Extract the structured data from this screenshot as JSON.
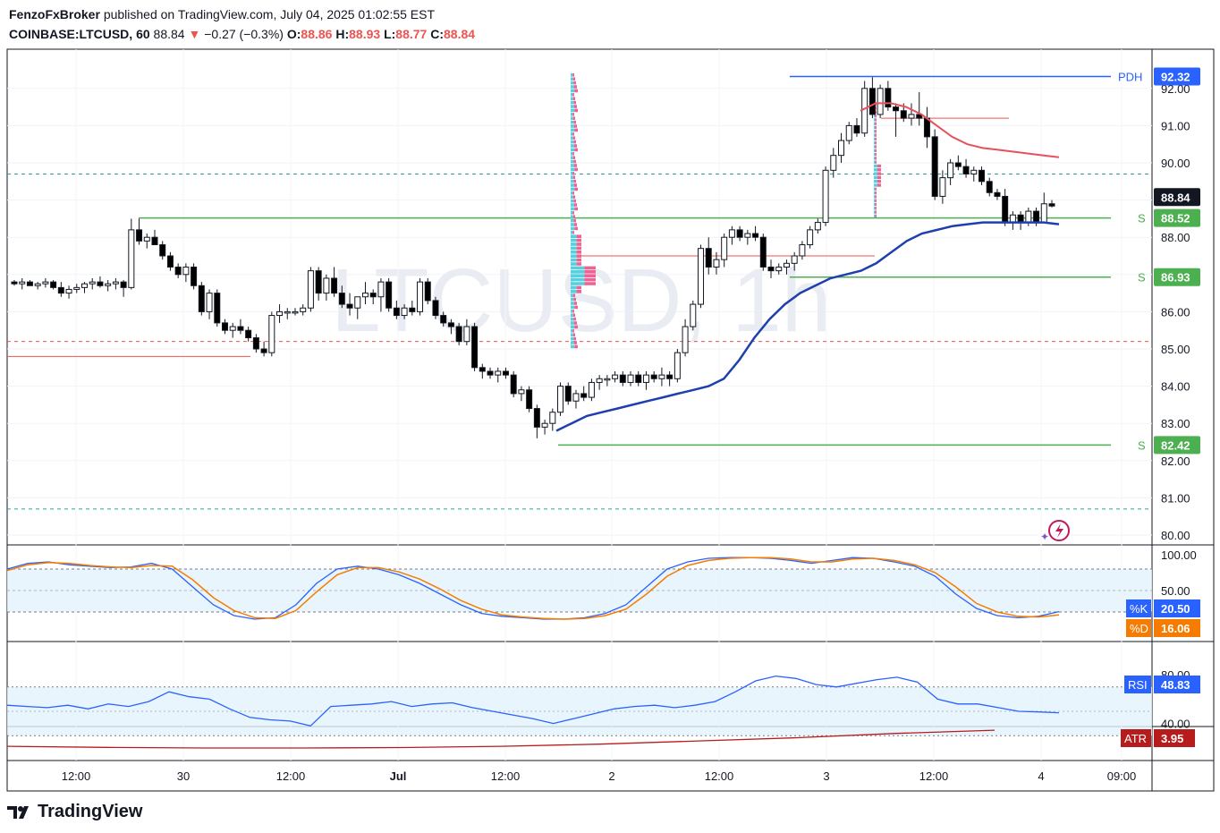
{
  "header": {
    "publisher": "FenzoFxBroker",
    "published_text": "published on TradingView.com, July 04, 2025 01:02:55 EST",
    "symbol": "COINBASE:LTCUSD, 60",
    "last": "88.84",
    "arrow": "▼",
    "change": "−0.27 (−0.3%)",
    "o_label": "O:",
    "o": "88.86",
    "h_label": "H:",
    "h": "88.93",
    "l_label": "L:",
    "l": "88.77",
    "c_label": "C:",
    "c": "88.84"
  },
  "watermark": "LTCUSD, 1h",
  "brand": "TradingView",
  "colors": {
    "up": "#ffffff",
    "down": "#000000",
    "support": "#4caf50",
    "resistance": "#ef5350",
    "pdh": "#2962ff",
    "ema_blue": "#1e3fae",
    "ema_red": "#e8505b",
    "stoch_k": "#2962ff",
    "stoch_d": "#f57c00",
    "rsi": "#2962ff",
    "atr": "#b71c1c"
  },
  "chart_data": [
    {
      "type": "candlestick",
      "title": "LTCUSD, 1h",
      "ylim": [
        79.7,
        93.0
      ],
      "y_ticks": [
        "80.00",
        "81.00",
        "82.00",
        "83.00",
        "84.00",
        "85.00",
        "86.00",
        "87.00",
        "88.00",
        "89.00",
        "90.00",
        "91.00",
        "92.00"
      ],
      "x_ticks": [
        "12:00",
        "30",
        "12:00",
        "Jul",
        "12:00",
        "2",
        "12:00",
        "3",
        "12:00",
        "4",
        "09:00"
      ],
      "candles": [
        [
          86.8,
          86.85,
          86.7,
          86.75
        ],
        [
          86.75,
          86.9,
          86.6,
          86.8
        ],
        [
          86.8,
          86.85,
          86.7,
          86.7
        ],
        [
          86.7,
          86.8,
          86.6,
          86.75
        ],
        [
          86.75,
          86.9,
          86.65,
          86.8
        ],
        [
          86.8,
          86.85,
          86.6,
          86.65
        ],
        [
          86.65,
          86.8,
          86.4,
          86.5
        ],
        [
          86.5,
          86.7,
          86.35,
          86.6
        ],
        [
          86.6,
          86.75,
          86.5,
          86.65
        ],
        [
          86.65,
          86.8,
          86.5,
          86.75
        ],
        [
          86.75,
          86.9,
          86.6,
          86.8
        ],
        [
          86.8,
          86.95,
          86.65,
          86.7
        ],
        [
          86.7,
          86.85,
          86.55,
          86.75
        ],
        [
          86.75,
          86.9,
          86.6,
          86.8
        ],
        [
          86.8,
          86.85,
          86.4,
          86.65
        ],
        [
          86.65,
          88.5,
          86.6,
          88.2
        ],
        [
          88.2,
          88.5,
          87.8,
          87.9
        ],
        [
          87.9,
          88.1,
          87.7,
          88.0
        ],
        [
          88.0,
          88.2,
          87.8,
          87.8
        ],
        [
          87.8,
          87.9,
          87.4,
          87.5
        ],
        [
          87.5,
          87.6,
          87.1,
          87.2
        ],
        [
          87.2,
          87.3,
          86.9,
          87.0
        ],
        [
          87.0,
          87.3,
          86.8,
          87.2
        ],
        [
          87.2,
          87.3,
          86.6,
          86.7
        ],
        [
          86.7,
          86.8,
          85.9,
          86.0
        ],
        [
          86.0,
          86.6,
          85.8,
          86.5
        ],
        [
          86.5,
          86.6,
          85.6,
          85.7
        ],
        [
          85.7,
          85.8,
          85.4,
          85.5
        ],
        [
          85.5,
          85.7,
          85.3,
          85.6
        ],
        [
          85.6,
          85.8,
          85.4,
          85.5
        ],
        [
          85.5,
          85.6,
          85.2,
          85.3
        ],
        [
          85.3,
          85.4,
          84.9,
          85.0
        ],
        [
          85.0,
          85.2,
          84.8,
          84.9
        ],
        [
          84.9,
          86.0,
          84.8,
          85.9
        ],
        [
          85.9,
          86.2,
          85.7,
          86.0
        ],
        [
          86.0,
          86.1,
          85.8,
          86.0
        ],
        [
          86.0,
          86.1,
          85.9,
          86.0
        ],
        [
          86.0,
          86.2,
          85.9,
          86.1
        ],
        [
          86.1,
          87.2,
          86.0,
          87.1
        ],
        [
          87.1,
          87.2,
          86.3,
          86.5
        ],
        [
          86.5,
          87.0,
          86.3,
          86.9
        ],
        [
          86.9,
          87.2,
          86.4,
          86.5
        ],
        [
          86.5,
          86.7,
          86.1,
          86.2
        ],
        [
          86.2,
          86.5,
          85.9,
          86.1
        ],
        [
          86.1,
          86.4,
          85.8,
          86.4
        ],
        [
          86.4,
          86.8,
          86.2,
          86.5
        ],
        [
          86.5,
          86.6,
          86.2,
          86.4
        ],
        [
          86.4,
          86.9,
          86.0,
          86.8
        ],
        [
          86.8,
          86.9,
          86.0,
          86.1
        ],
        [
          86.1,
          86.3,
          85.8,
          85.9
        ],
        [
          85.9,
          86.2,
          85.8,
          86.1
        ],
        [
          86.1,
          86.3,
          85.9,
          86.0
        ],
        [
          86.0,
          86.9,
          85.9,
          86.8
        ],
        [
          86.8,
          86.9,
          86.2,
          86.3
        ],
        [
          86.3,
          86.4,
          85.8,
          85.9
        ],
        [
          85.9,
          86.0,
          85.6,
          85.7
        ],
        [
          85.7,
          85.8,
          85.4,
          85.6
        ],
        [
          85.6,
          85.7,
          85.1,
          85.2
        ],
        [
          85.2,
          85.8,
          85.1,
          85.6
        ],
        [
          85.6,
          85.7,
          84.4,
          84.5
        ],
        [
          84.5,
          84.6,
          84.2,
          84.4
        ],
        [
          84.4,
          84.5,
          84.2,
          84.3
        ],
        [
          84.3,
          84.5,
          84.1,
          84.4
        ],
        [
          84.4,
          84.5,
          84.2,
          84.3
        ],
        [
          84.3,
          84.4,
          83.7,
          83.8
        ],
        [
          83.8,
          84.0,
          83.6,
          83.9
        ],
        [
          83.9,
          84.0,
          83.3,
          83.4
        ],
        [
          83.4,
          83.5,
          82.6,
          82.9
        ],
        [
          82.9,
          83.1,
          82.7,
          83.0
        ],
        [
          83.0,
          83.4,
          82.8,
          83.3
        ],
        [
          83.3,
          84.1,
          83.2,
          84.0
        ],
        [
          84.0,
          84.1,
          83.5,
          83.6
        ],
        [
          83.6,
          83.9,
          83.4,
          83.8
        ],
        [
          83.8,
          84.0,
          83.6,
          83.7
        ],
        [
          83.7,
          84.2,
          83.6,
          84.1
        ],
        [
          84.1,
          84.3,
          83.9,
          84.2
        ],
        [
          84.2,
          84.3,
          84.0,
          84.2
        ],
        [
          84.2,
          84.4,
          84.1,
          84.3
        ],
        [
          84.3,
          84.4,
          84.0,
          84.1
        ],
        [
          84.1,
          84.4,
          84.0,
          84.3
        ],
        [
          84.3,
          84.4,
          84.0,
          84.1
        ],
        [
          84.1,
          84.4,
          83.9,
          84.3
        ],
        [
          84.3,
          84.4,
          84.1,
          84.2
        ],
        [
          84.2,
          84.5,
          84.0,
          84.3
        ],
        [
          84.3,
          84.4,
          84.0,
          84.2
        ],
        [
          84.2,
          85.0,
          84.1,
          84.9
        ],
        [
          84.9,
          85.8,
          84.8,
          85.6
        ],
        [
          85.6,
          86.3,
          85.5,
          86.2
        ],
        [
          86.2,
          87.8,
          86.1,
          87.7
        ],
        [
          87.7,
          88.0,
          87.0,
          87.2
        ],
        [
          87.2,
          87.6,
          87.0,
          87.4
        ],
        [
          87.4,
          88.1,
          87.2,
          88.0
        ],
        [
          88.0,
          88.3,
          87.8,
          88.2
        ],
        [
          88.2,
          88.3,
          87.9,
          88.0
        ],
        [
          88.0,
          88.2,
          87.8,
          88.1
        ],
        [
          88.1,
          88.3,
          87.9,
          88.0
        ],
        [
          88.0,
          88.1,
          87.1,
          87.2
        ],
        [
          87.2,
          87.4,
          86.9,
          87.1
        ],
        [
          87.1,
          87.3,
          87.0,
          87.2
        ],
        [
          87.2,
          87.4,
          87.0,
          87.3
        ],
        [
          87.3,
          87.6,
          87.1,
          87.5
        ],
        [
          87.5,
          87.9,
          87.4,
          87.8
        ],
        [
          87.8,
          88.3,
          87.7,
          88.2
        ],
        [
          88.2,
          88.5,
          88.1,
          88.4
        ],
        [
          88.4,
          89.9,
          88.3,
          89.8
        ],
        [
          89.8,
          90.4,
          89.6,
          90.2
        ],
        [
          90.2,
          90.8,
          90.0,
          90.6
        ],
        [
          90.6,
          91.1,
          90.5,
          91.0
        ],
        [
          91.0,
          91.2,
          90.7,
          90.8
        ],
        [
          90.8,
          92.2,
          90.7,
          92.0
        ],
        [
          92.0,
          92.3,
          91.2,
          91.3
        ],
        [
          91.3,
          92.1,
          91.2,
          92.0
        ],
        [
          92.0,
          92.2,
          91.4,
          91.5
        ],
        [
          91.5,
          91.6,
          90.7,
          91.4
        ],
        [
          91.4,
          91.6,
          91.1,
          91.2
        ],
        [
          91.2,
          91.6,
          91.0,
          91.3
        ],
        [
          91.3,
          91.9,
          91.0,
          91.2
        ],
        [
          91.2,
          91.5,
          90.4,
          90.7
        ],
        [
          90.7,
          90.9,
          89.0,
          89.1
        ],
        [
          89.1,
          89.8,
          88.9,
          89.6
        ],
        [
          89.6,
          90.1,
          89.4,
          90.0
        ],
        [
          90.0,
          90.2,
          89.8,
          89.9
        ],
        [
          89.9,
          90.1,
          89.6,
          89.7
        ],
        [
          89.7,
          89.9,
          89.5,
          89.8
        ],
        [
          89.8,
          89.9,
          89.4,
          89.5
        ],
        [
          89.5,
          89.6,
          89.1,
          89.2
        ],
        [
          89.2,
          89.3,
          89.0,
          89.1
        ],
        [
          89.1,
          89.3,
          88.3,
          88.4
        ],
        [
          88.4,
          88.7,
          88.2,
          88.6
        ],
        [
          88.6,
          88.7,
          88.2,
          88.4
        ],
        [
          88.4,
          88.8,
          88.3,
          88.7
        ],
        [
          88.7,
          88.8,
          88.3,
          88.4
        ],
        [
          88.4,
          89.2,
          88.5,
          88.9
        ],
        [
          88.9,
          89.0,
          88.8,
          88.84
        ]
      ],
      "levels": [
        {
          "name": "PDH",
          "value": 92.32,
          "color": "#2962ff",
          "label": "PDH",
          "price_label": "92.32"
        },
        {
          "name": "support-1",
          "value": 88.52,
          "color": "#4caf50",
          "label": "S",
          "price_label": "88.52"
        },
        {
          "name": "support-2",
          "value": 86.93,
          "color": "#4caf50",
          "label": "S",
          "price_label": "86.93"
        },
        {
          "name": "support-3",
          "value": 82.42,
          "color": "#4caf50",
          "label": "S",
          "price_label": "82.42"
        }
      ],
      "last_price_label": "88.84",
      "dashed_levels": [
        89.7,
        85.2,
        80.7
      ],
      "red_levels": [
        84.8,
        87.5,
        91.2
      ],
      "ema_blue": [
        82.8,
        83.0,
        83.2,
        83.3,
        83.4,
        83.5,
        83.6,
        83.7,
        83.8,
        83.9,
        84.0,
        84.2,
        84.7,
        85.3,
        85.8,
        86.2,
        86.5,
        86.7,
        86.9,
        87.0,
        87.1,
        87.3,
        87.6,
        87.9,
        88.1,
        88.2,
        88.3,
        88.35,
        88.4,
        88.4,
        88.4,
        88.4,
        88.4,
        88.35
      ],
      "ema_red": [
        91.4,
        91.6,
        91.6,
        91.5,
        91.3,
        91.0,
        90.7,
        90.5,
        90.4,
        90.35,
        90.3,
        90.25,
        90.2,
        90.15
      ]
    },
    {
      "type": "line",
      "title": "Stochastic",
      "ylim": [
        0,
        100
      ],
      "y_ticks": [
        "50.00",
        "100.00"
      ],
      "series": [
        {
          "name": "%K",
          "values": [
            80,
            88,
            90,
            86,
            84,
            82,
            83,
            88,
            80,
            55,
            30,
            15,
            10,
            12,
            30,
            60,
            80,
            84,
            80,
            72,
            60,
            45,
            30,
            18,
            14,
            12,
            10,
            10,
            12,
            18,
            30,
            55,
            80,
            90,
            95,
            96,
            96,
            95,
            92,
            88,
            92,
            96,
            95,
            90,
            84,
            70,
            45,
            25,
            15,
            12,
            14,
            20.5
          ]
        },
        {
          "name": "%D",
          "values": [
            78,
            86,
            89,
            88,
            85,
            83,
            82,
            85,
            84,
            65,
            40,
            22,
            12,
            11,
            22,
            48,
            72,
            82,
            82,
            76,
            66,
            52,
            36,
            24,
            16,
            13,
            11,
            10,
            11,
            15,
            24,
            45,
            70,
            85,
            92,
            95,
            96,
            96,
            94,
            90,
            90,
            94,
            95,
            92,
            86,
            75,
            55,
            32,
            20,
            14,
            13,
            16.06
          ]
        }
      ],
      "labels": {
        "k": "%K",
        "k_value": "20.50",
        "d": "%D",
        "d_value": "16.06"
      }
    },
    {
      "type": "line",
      "title": "RSI",
      "ylim": [
        30,
        85
      ],
      "y_ticks": [
        "40.00",
        "80.00"
      ],
      "series": [
        {
          "name": "RSI",
          "values": [
            55,
            54,
            53,
            55,
            52,
            56,
            54,
            58,
            66,
            62,
            60,
            52,
            45,
            43,
            42,
            38,
            54,
            55,
            56,
            58,
            54,
            56,
            57,
            53,
            50,
            47,
            44,
            40,
            44,
            48,
            52,
            54,
            55,
            53,
            55,
            58,
            66,
            75,
            79,
            77,
            72,
            70,
            73,
            76,
            78,
            74,
            60,
            56,
            56,
            53,
            50,
            49.5,
            48.83
          ]
        }
      ],
      "labels": {
        "name": "RSI",
        "value": "48.83"
      }
    },
    {
      "type": "line",
      "title": "ATR",
      "series": [
        {
          "name": "ATR",
          "values": [
            3.2,
            3.15,
            3.12,
            3.12,
            3.14,
            3.2,
            3.3,
            3.45,
            3.6,
            3.8,
            3.95
          ]
        }
      ],
      "labels": {
        "name": "ATR",
        "value": "3.95"
      }
    }
  ]
}
